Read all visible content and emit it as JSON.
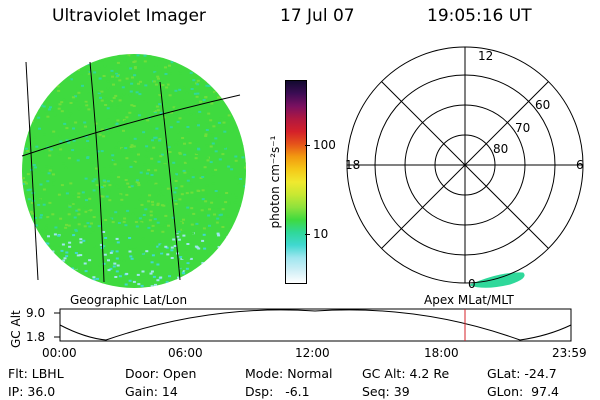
{
  "header": {
    "instrument": "Ultraviolet Imager",
    "date": "17 Jul 07",
    "time": "19:05:16 UT"
  },
  "colorbar": {
    "unit_label": "photon cm⁻²s⁻¹",
    "tick_labels": [
      "100",
      "10"
    ],
    "colors": [
      "#ffffff",
      "#cfeff6",
      "#9fe6ef",
      "#40d8d0",
      "#2fd89a",
      "#3fda3f",
      "#8fe23c",
      "#c8e832",
      "#f0e92f",
      "#f5c818",
      "#f29a10",
      "#e5531a",
      "#d4202a",
      "#b01840",
      "#7a1060",
      "#3c0c54",
      "#120a30"
    ]
  },
  "left_panel": {
    "caption": "Geographic Lat/Lon",
    "image_colors": [
      "#3fda3f",
      "#6fde3a",
      "#2fd89a",
      "#40d8d0",
      "#9fe6ef"
    ]
  },
  "right_panel": {
    "caption": "Apex MLat/MLT",
    "mlt_labels": {
      "top": "12",
      "left": "18",
      "right": "6",
      "bottom": "0"
    },
    "mlat_labels": [
      "60",
      "70",
      "80"
    ],
    "aurora_color": "#2fd89a"
  },
  "altitude_plot": {
    "ylabel": "GC Alt",
    "y_ticks": [
      "9.0",
      "1.8"
    ],
    "x_ticks": [
      "00:00",
      "06:00",
      "12:00",
      "18:00",
      "23:59"
    ],
    "marker_color": "#d4202a"
  },
  "info": {
    "filter": "Flt: LBHL",
    "door": "Door: Open",
    "mode": "Mode: Normal",
    "gc_alt": "GC Alt: 4.2 Re",
    "glat": "GLat: -24.7",
    "ip": "IP: 36.0",
    "gain": "Gain: 14",
    "dsp": "Dsp:   -6.1",
    "seq": "Seq: 39",
    "glon": "GLon:  97.4"
  }
}
